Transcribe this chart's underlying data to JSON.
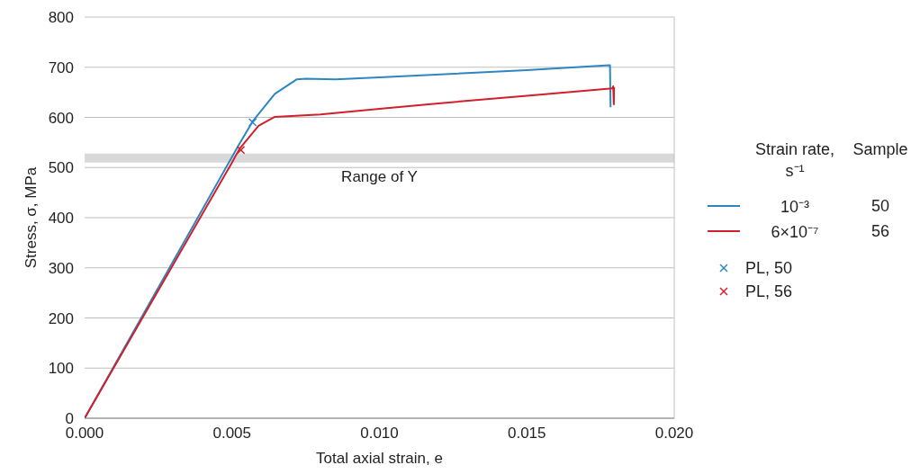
{
  "chart_data": {
    "type": "line",
    "xlabel": "Total axial strain, e",
    "ylabel": "Stress, σ, MPa",
    "legend_title": "Strain rate, s⁻¹ Sample",
    "xlim": [
      0,
      0.02
    ],
    "xticks": [
      {
        "value": 0,
        "label": "0.000"
      },
      {
        "value": 0.005,
        "label": "0.005"
      },
      {
        "value": 0.01,
        "label": "0.010"
      },
      {
        "value": 0.015,
        "label": "0.015"
      },
      {
        "value": 0.02,
        "label": "0.020"
      }
    ],
    "ylim": [
      0,
      800
    ],
    "yticks": [
      0,
      100,
      200,
      300,
      400,
      500,
      600,
      700,
      800
    ],
    "grid": "y",
    "legend": "right",
    "line_style": "solid",
    "marker": "none",
    "bands": [
      {
        "axis": "y",
        "from": 510,
        "to": 528,
        "label": "Range of Y",
        "color": "#d9d9d9"
      }
    ],
    "series": [
      {
        "name": "10⁻³ 50",
        "color": "#2e86c1",
        "x": [
          0,
          0.0052,
          0.0057,
          0.00645,
          0.0072,
          0.0075,
          0.0085,
          0.01,
          0.015,
          0.0178,
          0.01782,
          0.01784
        ],
        "values": [
          0,
          542,
          592,
          647,
          676,
          677,
          676,
          680,
          694,
          704,
          704,
          620
        ]
      },
      {
        "name": "6×10⁻⁷ 56",
        "color": "#d0202a",
        "x": [
          0,
          0.005,
          0.00525,
          0.0059,
          0.00645,
          0.008,
          0.01,
          0.012,
          0.015,
          0.0179,
          0.01793,
          0.01795,
          0.01796
        ],
        "values": [
          0,
          510,
          537,
          583,
          601,
          606,
          617,
          628,
          643,
          658,
          662,
          626,
          660
        ]
      },
      {
        "name": "PL, 50",
        "type": "scatter",
        "marker": "cross",
        "color": "#2e86c1",
        "x": [
          0.0057
        ],
        "values": [
          590
        ]
      },
      {
        "name": "PL, 56",
        "type": "scatter",
        "marker": "cross",
        "color": "#d0202a",
        "x": [
          0.0053
        ],
        "values": [
          535
        ]
      }
    ]
  }
}
